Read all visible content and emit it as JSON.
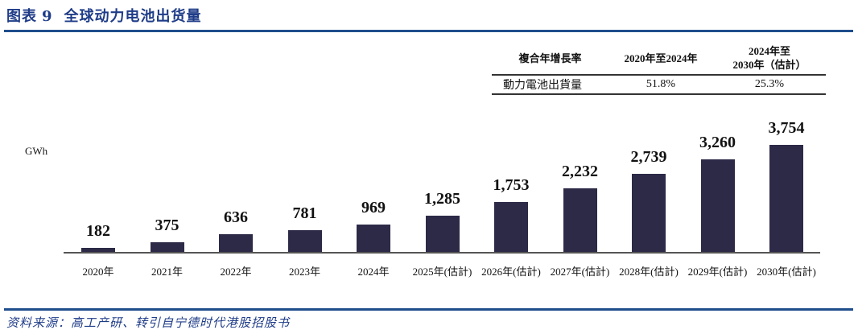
{
  "header": {
    "figure_label": "图表",
    "figure_number": "9",
    "title": "全球动力电池出货量"
  },
  "cagr_table": {
    "headers": [
      "複合年增長率",
      "2020年至2024年",
      "2024年至",
      "2030年（估計）"
    ],
    "row": {
      "label": "動力電池出貨量",
      "cagr_2020_2024": "51.8%",
      "cagr_2024_2030": "25.3%"
    }
  },
  "source": "资料来源：高工产研、转引自宁德时代港股招股书",
  "chart_data": {
    "type": "bar",
    "title": "全球动力电池出货量",
    "xlabel": "",
    "ylabel": "GWh",
    "categories": [
      "2020年",
      "2021年",
      "2022年",
      "2023年",
      "2024年",
      "2025年(估計)",
      "2026年(估計)",
      "2027年(估計)",
      "2028年(估計)",
      "2029年(估計)",
      "2030年(估計)"
    ],
    "values": [
      182,
      375,
      636,
      781,
      969,
      1285,
      1753,
      2232,
      2739,
      3260,
      3754
    ],
    "value_labels": [
      "182",
      "375",
      "636",
      "781",
      "969",
      "1,285",
      "1,753",
      "2,232",
      "2,739",
      "3,260",
      "3,754"
    ],
    "ylim": [
      0,
      3754
    ],
    "grid": false,
    "bar_color": "#2c2a47",
    "annotations": {
      "cagr_2020_2024": "51.8%",
      "cagr_2024_2030": "25.3%"
    }
  }
}
